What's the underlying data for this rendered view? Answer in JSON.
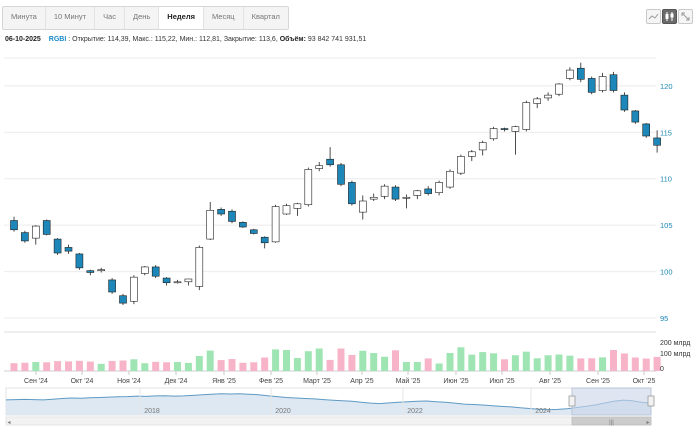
{
  "toolbar": {
    "tabs": [
      "Минута",
      "10 Минут",
      "Час",
      "День",
      "Неделя",
      "Месяц",
      "Квартал"
    ],
    "active_tab": "Неделя",
    "chart_type_icons": [
      "line-chart-icon",
      "candlestick-chart-icon",
      "expand-icon"
    ]
  },
  "info": {
    "date": "06-10-2025",
    "ticker": "RGBI",
    "open_label": "Открытие:",
    "open": "114,39,",
    "high_label": "Макс.:",
    "high": "115,22,",
    "low_label": "Мин.:",
    "low": "112,81,",
    "close_label": "Закрытие:",
    "close": "113,6,",
    "volume_label": "Объём:",
    "volume": "93 842 741 931,51"
  },
  "colors": {
    "up_candle": "#ffffff",
    "down_candle": "#1c87b8",
    "axis_label": "#1c87b8",
    "volume_up": "#9fe4b3",
    "volume_down": "#f7b4c9",
    "navigator_line": "#5f9ac4",
    "navigator_fill": "#dde8f2",
    "navigator_window": "#c9d6ea"
  },
  "chart_data": {
    "type": "candlestick",
    "interval": "week",
    "ylim": [
      95,
      123
    ],
    "y_ticks": [
      "95",
      "100",
      "105",
      "110",
      "115",
      "120"
    ],
    "x_labels": [
      "Сен '24",
      "Окт '24",
      "Ноя '24",
      "Дек '24",
      "Янв '25",
      "Фев '25",
      "Март '25",
      "Апр '25",
      "Май '25",
      "Июн '25",
      "Июл '25",
      "Авг '25",
      "Сен '25",
      "Окт '25"
    ],
    "candles": [
      {
        "o": 105.5,
        "h": 105.9,
        "l": 104.3,
        "c": 104.5
      },
      {
        "o": 104.2,
        "h": 104.4,
        "l": 103.1,
        "c": 103.3
      },
      {
        "o": 103.6,
        "h": 105.0,
        "l": 102.9,
        "c": 104.9
      },
      {
        "o": 105.5,
        "h": 105.6,
        "l": 103.9,
        "c": 104.0
      },
      {
        "o": 103.5,
        "h": 103.6,
        "l": 101.8,
        "c": 102.0
      },
      {
        "o": 102.6,
        "h": 102.9,
        "l": 101.9,
        "c": 102.2
      },
      {
        "o": 101.9,
        "h": 102.0,
        "l": 100.2,
        "c": 100.4
      },
      {
        "o": 100.1,
        "h": 100.2,
        "l": 99.6,
        "c": 99.9
      },
      {
        "o": 100.1,
        "h": 100.4,
        "l": 99.9,
        "c": 100.2
      },
      {
        "o": 99.1,
        "h": 99.3,
        "l": 97.6,
        "c": 97.8
      },
      {
        "o": 97.4,
        "h": 97.6,
        "l": 96.4,
        "c": 96.6
      },
      {
        "o": 96.8,
        "h": 99.6,
        "l": 96.5,
        "c": 99.4
      },
      {
        "o": 99.8,
        "h": 100.6,
        "l": 99.6,
        "c": 100.5
      },
      {
        "o": 100.5,
        "h": 100.7,
        "l": 99.3,
        "c": 99.5
      },
      {
        "o": 99.3,
        "h": 99.4,
        "l": 98.5,
        "c": 98.8
      },
      {
        "o": 98.9,
        "h": 99.1,
        "l": 98.7,
        "c": 98.9
      },
      {
        "o": 98.9,
        "h": 99.2,
        "l": 98.5,
        "c": 99.2
      },
      {
        "o": 98.4,
        "h": 102.8,
        "l": 98.0,
        "c": 102.6
      },
      {
        "o": 103.5,
        "h": 107.5,
        "l": 103.4,
        "c": 106.6
      },
      {
        "o": 106.7,
        "h": 106.9,
        "l": 106.0,
        "c": 106.2
      },
      {
        "o": 106.5,
        "h": 106.7,
        "l": 105.2,
        "c": 105.4
      },
      {
        "o": 105.3,
        "h": 105.4,
        "l": 104.7,
        "c": 104.8
      },
      {
        "o": 104.5,
        "h": 104.6,
        "l": 104.0,
        "c": 104.1
      },
      {
        "o": 103.7,
        "h": 103.8,
        "l": 102.5,
        "c": 103.1
      },
      {
        "o": 103.2,
        "h": 107.2,
        "l": 103.1,
        "c": 107.0
      },
      {
        "o": 106.2,
        "h": 107.3,
        "l": 106.1,
        "c": 107.1
      },
      {
        "o": 106.8,
        "h": 107.4,
        "l": 106.0,
        "c": 107.3
      },
      {
        "o": 107.2,
        "h": 111.2,
        "l": 107.0,
        "c": 111.0
      },
      {
        "o": 111.1,
        "h": 111.8,
        "l": 110.8,
        "c": 111.4
      },
      {
        "o": 112.1,
        "h": 113.4,
        "l": 111.3,
        "c": 111.5
      },
      {
        "o": 111.5,
        "h": 111.7,
        "l": 109.2,
        "c": 109.4
      },
      {
        "o": 109.6,
        "h": 109.8,
        "l": 107.1,
        "c": 107.3
      },
      {
        "o": 106.4,
        "h": 108.2,
        "l": 105.6,
        "c": 107.6
      },
      {
        "o": 107.8,
        "h": 108.4,
        "l": 107.6,
        "c": 108.0
      },
      {
        "o": 108.1,
        "h": 109.4,
        "l": 107.8,
        "c": 109.2
      },
      {
        "o": 109.1,
        "h": 109.3,
        "l": 107.6,
        "c": 107.8
      },
      {
        "o": 107.9,
        "h": 108.3,
        "l": 106.8,
        "c": 108.0
      },
      {
        "o": 108.2,
        "h": 108.8,
        "l": 107.8,
        "c": 108.7
      },
      {
        "o": 108.9,
        "h": 109.2,
        "l": 108.2,
        "c": 108.4
      },
      {
        "o": 108.5,
        "h": 109.8,
        "l": 108.2,
        "c": 109.6
      },
      {
        "o": 109.1,
        "h": 111.0,
        "l": 108.9,
        "c": 110.8
      },
      {
        "o": 110.6,
        "h": 112.6,
        "l": 110.4,
        "c": 112.4
      },
      {
        "o": 112.4,
        "h": 113.1,
        "l": 111.9,
        "c": 112.9
      },
      {
        "o": 113.1,
        "h": 114.1,
        "l": 112.5,
        "c": 113.9
      },
      {
        "o": 114.3,
        "h": 115.6,
        "l": 114.1,
        "c": 115.4
      },
      {
        "o": 115.4,
        "h": 115.5,
        "l": 115.1,
        "c": 115.3
      },
      {
        "o": 115.1,
        "h": 115.7,
        "l": 112.6,
        "c": 115.6
      },
      {
        "o": 115.3,
        "h": 118.4,
        "l": 115.1,
        "c": 118.2
      },
      {
        "o": 118.1,
        "h": 118.8,
        "l": 117.6,
        "c": 118.6
      },
      {
        "o": 118.7,
        "h": 119.3,
        "l": 118.4,
        "c": 119.0
      },
      {
        "o": 119.1,
        "h": 120.3,
        "l": 118.9,
        "c": 120.2
      },
      {
        "o": 120.8,
        "h": 122.0,
        "l": 120.6,
        "c": 121.7
      },
      {
        "o": 121.9,
        "h": 122.5,
        "l": 120.4,
        "c": 120.7
      },
      {
        "o": 120.8,
        "h": 121.0,
        "l": 119.1,
        "c": 119.3
      },
      {
        "o": 119.5,
        "h": 121.4,
        "l": 119.3,
        "c": 121.0
      },
      {
        "o": 121.2,
        "h": 121.5,
        "l": 119.3,
        "c": 119.5
      },
      {
        "o": 119.0,
        "h": 119.3,
        "l": 117.2,
        "c": 117.4
      },
      {
        "o": 117.3,
        "h": 117.4,
        "l": 115.9,
        "c": 116.1
      },
      {
        "o": 115.9,
        "h": 116.0,
        "l": 114.4,
        "c": 114.6
      },
      {
        "o": 114.39,
        "h": 115.22,
        "l": 112.81,
        "c": 113.6
      }
    ],
    "volume_axis_ticks": [
      "200 млрд",
      "100 млрд",
      "0"
    ],
    "volume_ylim": [
      0,
      200
    ],
    "volume_unit": "млрд",
    "volume": [
      52,
      55,
      60,
      58,
      66,
      64,
      68,
      63,
      48,
      67,
      70,
      78,
      52,
      61,
      58,
      60,
      54,
      100,
      136,
      73,
      80,
      55,
      58,
      90,
      144,
      140,
      86,
      132,
      150,
      74,
      150,
      107,
      135,
      120,
      95,
      138,
      60,
      60,
      84,
      50,
      120,
      158,
      109,
      126,
      118,
      78,
      105,
      129,
      85,
      105,
      110,
      102,
      84,
      85,
      91,
      140,
      117,
      90,
      83,
      94
    ],
    "navigator": {
      "year_labels": [
        "2018",
        "2020",
        "2022",
        "2024"
      ],
      "series": [
        121,
        121.5,
        122,
        121.5,
        121,
        122.5,
        124,
        125,
        124.5,
        125.5,
        126,
        127,
        127.5,
        128,
        129,
        128.5,
        129.5,
        130,
        129,
        129.5,
        130.5,
        132,
        133,
        134,
        133.5,
        134,
        133,
        132,
        130,
        128,
        126,
        125,
        124,
        123,
        121.5,
        120,
        119,
        118,
        116,
        114,
        113,
        114.5,
        116,
        117,
        118,
        118.5,
        117,
        116,
        114,
        112,
        111,
        110,
        108.5,
        107,
        106,
        104,
        102.5,
        101,
        100,
        100.5,
        102,
        104.5,
        107,
        110,
        114,
        118,
        120.5,
        119,
        116,
        113.6
      ],
      "selected_range": [
        "Сен '24",
        "Окт '25"
      ]
    }
  }
}
